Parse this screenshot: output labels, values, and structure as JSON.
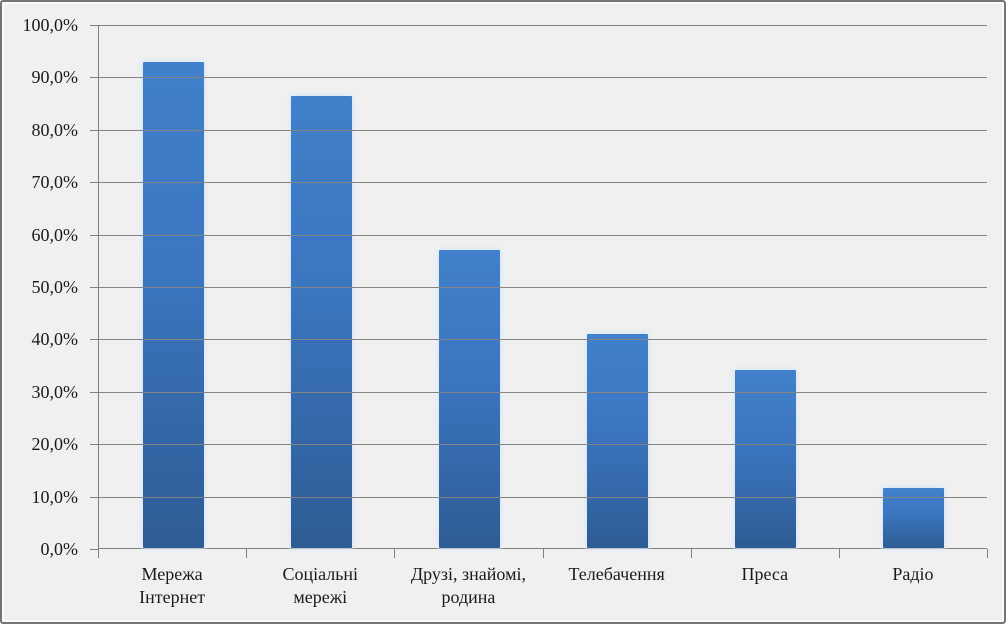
{
  "chart_data": {
    "type": "bar",
    "title": "",
    "categories": [
      "Мережа Інтернет",
      "Соціальні мережі",
      "Друзі, знайомі, родина",
      "Телебачення",
      "Преса",
      "Радіо"
    ],
    "category_display": [
      "Мережа\nІнтернет",
      "Соціальні\nмережі",
      "Друзі, знайомі,\nродина",
      "Телебачення",
      "Преса",
      "Радіо"
    ],
    "values": [
      93.0,
      86.5,
      56.9,
      41.0,
      34.0,
      11.5
    ],
    "unit": "%",
    "xlabel": "",
    "ylabel": "",
    "ylim": [
      0,
      100
    ],
    "ytick_step": 10,
    "yticks": [
      0,
      10,
      20,
      30,
      40,
      50,
      60,
      70,
      80,
      90,
      100
    ],
    "ytick_labels": [
      "0,0%",
      "10,0%",
      "20,0%",
      "30,0%",
      "40,0%",
      "50,0%",
      "60,0%",
      "70,0%",
      "80,0%",
      "90,0%",
      "100,0%"
    ],
    "grid": true,
    "legend_position": "none",
    "colors": {
      "bar_top": "#4180ca",
      "bar_bottom": "#2e5c94",
      "background": "#f0f0f0",
      "gridline": "#848484",
      "axis": "#7f7f7f",
      "text": "#1a1a1a",
      "border": "#757575"
    }
  }
}
